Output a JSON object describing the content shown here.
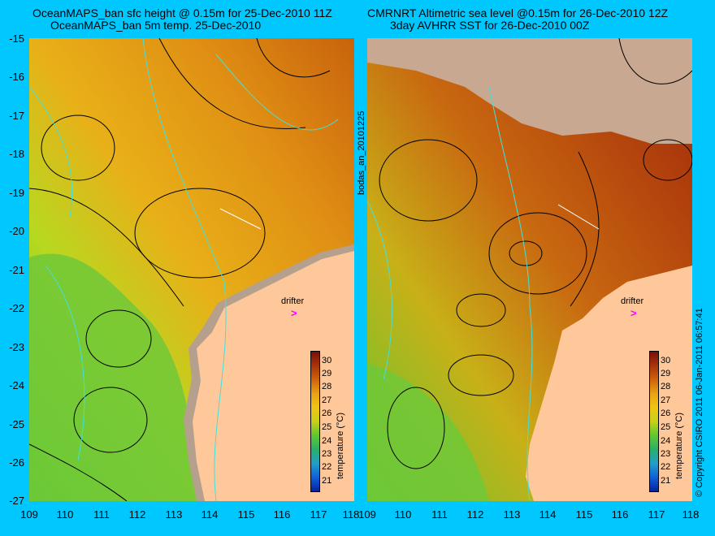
{
  "left_panel": {
    "title_line1": "OceanMAPS_ban sfc height @ 0.15m for 25-Dec-2010 11Z",
    "title_line2": "OceanMAPS_ban 5m temp. 25-Dec-2010",
    "vertical_label": "bodas_an_20101225"
  },
  "right_panel": {
    "title_line1": "CMRNRT Altimetric sea level  @0.15m  for 26-Dec-2010 12Z",
    "title_line2": "3day AVHRR SST for 26-Dec-2010 00Z",
    "copyright": "© Copyright CSIRO 2011  06-Jan-2011 06:57:41"
  },
  "y_axis_labels": [
    "-15",
    "-16",
    "-17",
    "-18",
    "-19",
    "-20",
    "-21",
    "-22",
    "-23",
    "-24",
    "-25",
    "-26",
    "-27"
  ],
  "x_axis_labels": [
    "109",
    "110",
    "111",
    "112",
    "113",
    "114",
    "115",
    "116",
    "117",
    "118"
  ],
  "colorbar": {
    "title": "temperature (°C)",
    "ticks": [
      "30",
      "29",
      "28",
      "27",
      "26",
      "25",
      "24",
      "23",
      "22",
      "21"
    ],
    "colors": [
      "#7a0e08",
      "#a8340a",
      "#d0620a",
      "#e8a214",
      "#f0c414",
      "#c8d018",
      "#60c830",
      "#28b068",
      "#20a0c8",
      "#1060d8",
      "#0820a0"
    ]
  },
  "annotations": {
    "drifter_label": "drifter",
    "drifter_marker": ">"
  },
  "colors": {
    "background": "#00c8ff",
    "land": "#ffc89a",
    "shelf_land": "#b4a08c",
    "contour": "#000000",
    "isobath": "#40e0e0"
  }
}
